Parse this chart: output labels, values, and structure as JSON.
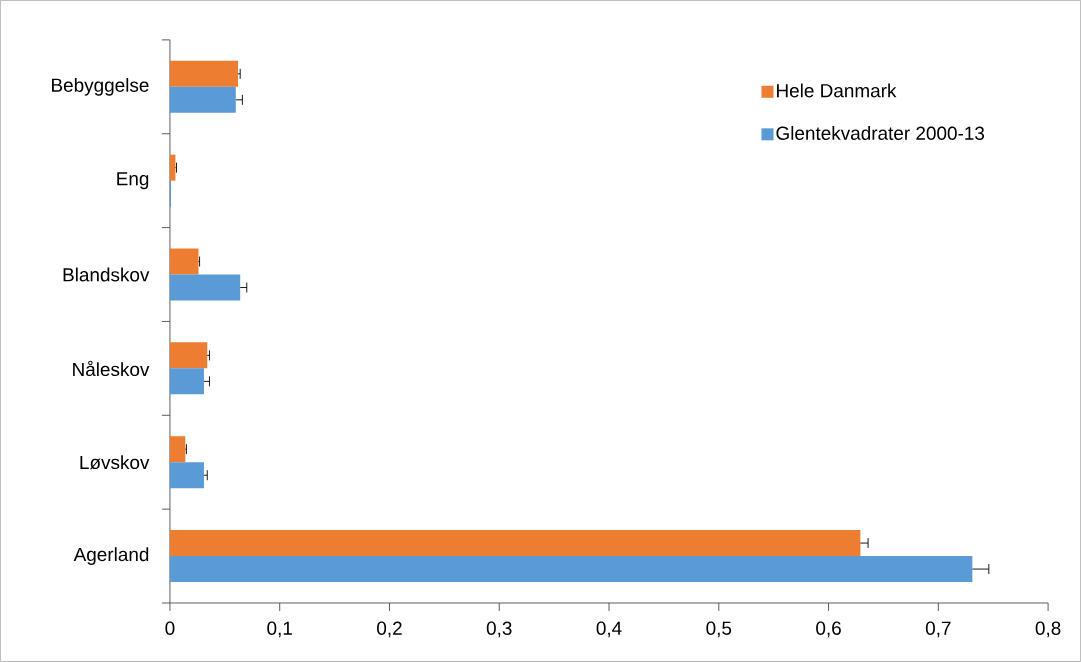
{
  "chart_data": {
    "type": "bar",
    "orientation": "horizontal",
    "categories": [
      "Bebyggelse",
      "Eng",
      "Blandskov",
      "Nåleskov",
      "Løvskov",
      "Agerland"
    ],
    "series": [
      {
        "name": "Hele Danmark",
        "color": "#ed7d31",
        "values": [
          0.062,
          0.005,
          0.026,
          0.034,
          0.014,
          0.629
        ],
        "errors": [
          [
            0.062,
            0.064
          ],
          [
            0.005,
            0.006
          ],
          [
            0.026,
            0.027
          ],
          [
            0.034,
            0.036
          ],
          [
            0.014,
            0.015
          ],
          [
            0.629,
            0.636
          ]
        ]
      },
      {
        "name": "Glentekvadrater 2000-13",
        "color": "#5b9bd5",
        "values": [
          0.06,
          0.001,
          0.064,
          0.031,
          0.031,
          0.731
        ],
        "errors": [
          [
            0.06,
            0.066
          ],
          null,
          [
            0.064,
            0.07
          ],
          [
            0.031,
            0.036
          ],
          [
            0.031,
            0.034
          ],
          [
            0.731,
            0.746
          ]
        ]
      }
    ],
    "xlim": [
      0,
      0.8
    ],
    "xticks": [
      0,
      {
        "value": 0.1,
        "label": "0,1"
      },
      {
        "value": 0.2,
        "label": "0,2"
      },
      {
        "value": 0.3,
        "label": "0,3"
      },
      {
        "value": 0.4,
        "label": "0,4"
      },
      {
        "value": 0.5,
        "label": "0,5"
      },
      {
        "value": 0.6,
        "label": "0,6"
      },
      {
        "value": 0.7,
        "label": "0,7"
      },
      {
        "value": 0.8,
        "label": "0,8"
      }
    ],
    "grid": false,
    "legend": "top right"
  }
}
